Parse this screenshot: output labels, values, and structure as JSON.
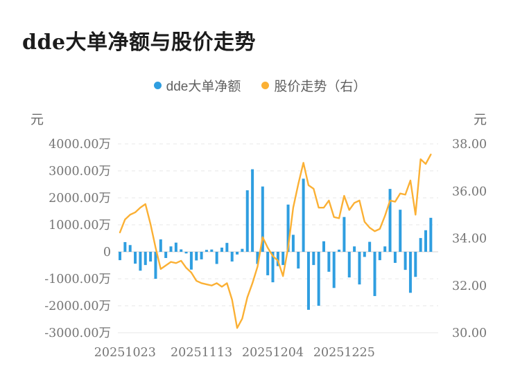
{
  "title": "dde大单净额与股价走势",
  "legend": [
    {
      "label": "dde大单净额",
      "color": "#2f9ee0",
      "icon": "blue-dot-icon"
    },
    {
      "label": "股价走势（右）",
      "color": "#fbb034",
      "icon": "yellow-dot-icon"
    }
  ],
  "left_axis": {
    "unit": "元",
    "tick_labels": [
      "4000.00万",
      "3000.00万",
      "2000.00万",
      "1000.00万",
      "0",
      "-1000.00万",
      "-2000.00万",
      "-3000.00万"
    ],
    "tick_values_wan": [
      4000,
      3000,
      2000,
      1000,
      0,
      -1000,
      -2000,
      -3000
    ]
  },
  "right_axis": {
    "unit": "元",
    "tick_labels": [
      "38.00",
      "36.00",
      "34.00",
      "32.00",
      "30.00"
    ],
    "tick_values": [
      38,
      36,
      34,
      32,
      30
    ]
  },
  "x_axis": {
    "tick_labels": [
      "20251023",
      "20251113",
      "20251204",
      "20251225"
    ],
    "tick_indices": [
      1,
      16,
      30,
      44
    ]
  },
  "chart_data": {
    "type": "combo",
    "title": "dde大单净额与股价走势",
    "n_points": 62,
    "grid": "horizontal-dashed",
    "legend_position": "top-center",
    "left_ylim_wan": [
      -3000,
      4000
    ],
    "right_ylim": [
      30,
      38
    ],
    "x_tick_labels": [
      "20251023",
      "20251113",
      "20251204",
      "20251225"
    ],
    "x_tick_indices": [
      1,
      16,
      30,
      44
    ],
    "series": [
      {
        "name": "dde大单净额",
        "type": "bar",
        "axis": "left",
        "unit": "万元",
        "color": "#2f9ee0",
        "values": [
          -310,
          360,
          250,
          -440,
          -700,
          -490,
          -360,
          -1000,
          460,
          -230,
          200,
          340,
          90,
          -60,
          -660,
          -320,
          -280,
          70,
          85,
          -450,
          155,
          330,
          -360,
          -100,
          110,
          2280,
          3060,
          -450,
          2420,
          -870,
          -1130,
          -530,
          -490,
          1750,
          630,
          -620,
          2710,
          -2150,
          -490,
          -2000,
          390,
          -740,
          -1340,
          80,
          1290,
          -950,
          200,
          -1210,
          -190,
          370,
          -1640,
          -310,
          200,
          2330,
          -410,
          1560,
          -670,
          -1520,
          -930,
          510,
          800,
          1260
        ]
      },
      {
        "name": "股价走势",
        "type": "line",
        "axis": "right",
        "unit": "元",
        "color": "#fbb034",
        "values": [
          34.25,
          34.8,
          35.0,
          35.1,
          35.3,
          35.45,
          34.6,
          33.6,
          32.7,
          32.85,
          33.0,
          32.95,
          33.05,
          32.75,
          32.55,
          32.2,
          32.1,
          32.05,
          32.0,
          32.1,
          31.95,
          32.1,
          31.4,
          30.2,
          30.6,
          31.5,
          32.1,
          32.8,
          34.05,
          33.6,
          33.25,
          33.05,
          32.4,
          33.6,
          35.3,
          36.3,
          37.2,
          36.25,
          36.1,
          35.3,
          35.3,
          35.6,
          34.9,
          34.85,
          35.8,
          35.2,
          35.5,
          35.6,
          34.7,
          34.45,
          34.3,
          34.4,
          34.95,
          35.6,
          35.55,
          35.9,
          35.85,
          36.45,
          35.0,
          37.35,
          37.15,
          37.55
        ]
      }
    ]
  }
}
